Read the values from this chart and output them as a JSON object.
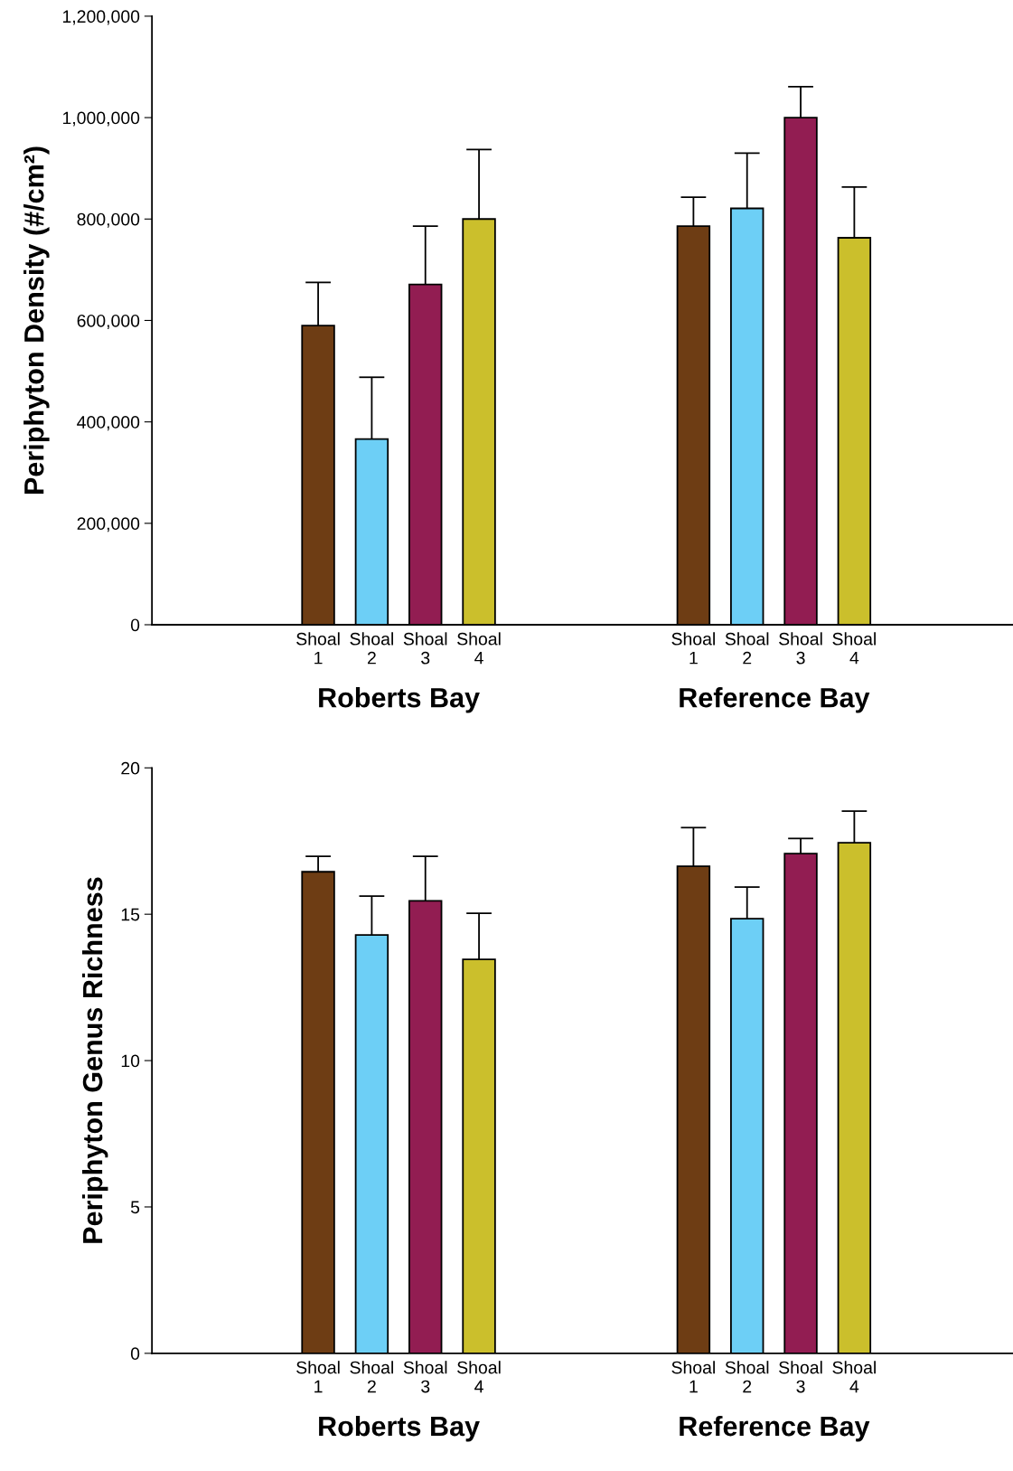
{
  "chart_data": [
    {
      "type": "bar",
      "ylabel": "Periphyton Density (#/cm²)",
      "categories": [
        null,
        null,
        null,
        "Shoal\n1",
        "Shoal\n2",
        "Shoal\n3",
        "Shoal\n4",
        null,
        null,
        null,
        "Shoal\n1",
        "Shoal\n2",
        "Shoal\n3",
        "Shoal\n4"
      ],
      "values": [
        null,
        null,
        null,
        590000,
        366000,
        671000,
        800000,
        null,
        null,
        null,
        786000,
        821000,
        1000000,
        763000
      ],
      "errors": [
        null,
        null,
        null,
        85000,
        122000,
        115000,
        137000,
        null,
        null,
        null,
        57000,
        109000,
        61000,
        100000
      ],
      "colors": [
        "#6e3d14",
        "#6dcff6",
        "#921d52",
        "#6e3d14",
        "#6dcff6",
        "#921d52",
        "#cbbf2c",
        "#6e3d14",
        "#6dcff6",
        "#921d52",
        "#6e3d14",
        "#6dcff6",
        "#921d52",
        "#cbbf2c"
      ],
      "ylim": [
        0,
        1200000
      ],
      "yticks": [
        0,
        {
          "value": 200000,
          "label": "200,000"
        },
        {
          "value": 400000,
          "label": "400,000"
        },
        {
          "value": 600000,
          "label": "600,000"
        },
        {
          "value": 800000,
          "label": "800,000"
        },
        {
          "value": 1000000,
          "label": "1,000,000"
        },
        {
          "value": 1200000,
          "label": "1,200,000"
        }
      ],
      "annotations": [
        "Roberts Bay",
        "Reference Bay"
      ],
      "grid": false
    },
    {
      "type": "bar",
      "ylabel": "Periphyton Genus Richness",
      "categories": [
        null,
        null,
        null,
        "Shoal\n1",
        "Shoal\n2",
        "Shoal\n3",
        "Shoal\n4",
        null,
        null,
        null,
        "Shoal\n1",
        "Shoal\n2",
        "Shoal\n3",
        "Shoal\n4"
      ],
      "values": [
        null,
        null,
        null,
        16.45,
        14.29,
        15.46,
        13.46,
        null,
        null,
        null,
        16.64,
        14.85,
        17.07,
        17.44
      ],
      "errors": [
        null,
        null,
        null,
        0.53,
        1.33,
        1.52,
        1.57,
        null,
        null,
        null,
        1.32,
        1.08,
        0.52,
        1.08
      ],
      "colors": [
        "#6e3d14",
        "#6dcff6",
        "#921d52",
        "#6e3d14",
        "#6dcff6",
        "#921d52",
        "#cbbf2c",
        "#6e3d14",
        "#6dcff6",
        "#921d52",
        "#6e3d14",
        "#6dcff6",
        "#921d52",
        "#cbbf2c"
      ],
      "ylim": [
        0,
        20
      ],
      "yticks": [
        0,
        5,
        10,
        15,
        20
      ],
      "annotations": [
        "Roberts Bay",
        "Reference Bay"
      ],
      "grid": false
    }
  ]
}
